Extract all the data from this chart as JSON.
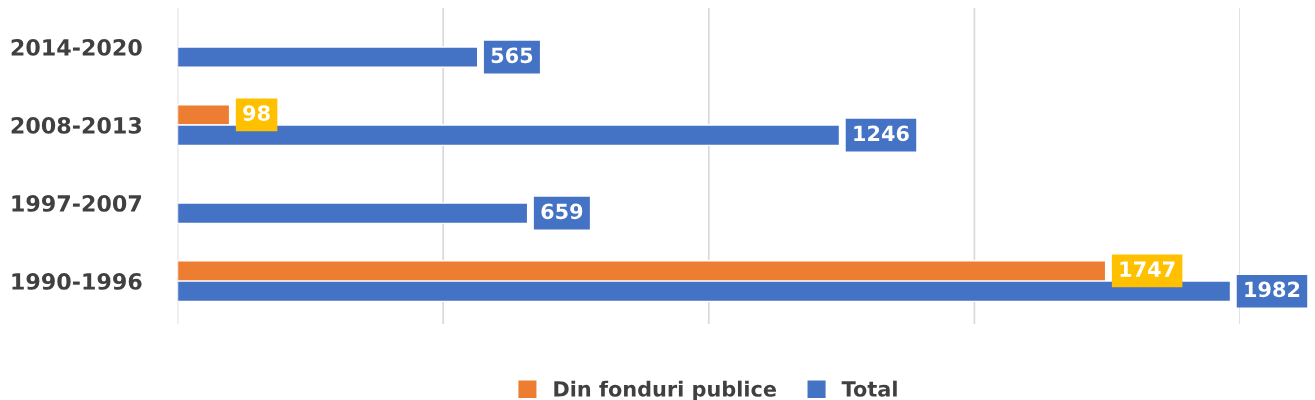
{
  "chart_data": {
    "type": "bar",
    "orientation": "horizontal",
    "categories": [
      "2014-2020",
      "2008-2013",
      "1997-2007",
      "1990-1996"
    ],
    "series": [
      {
        "name": "Din fonduri publice",
        "color": "#ed7d31",
        "values": [
          null,
          98,
          null,
          1747
        ]
      },
      {
        "name": "Total",
        "color": "#4472c4",
        "values": [
          565,
          1246,
          659,
          1982
        ]
      }
    ],
    "xlim": [
      0,
      2000
    ],
    "xticks": [
      {
        "value": 0,
        "label": null
      },
      {
        "value": 500,
        "label": null
      },
      {
        "value": 1000,
        "label": null
      },
      {
        "value": 1500,
        "label": null
      },
      {
        "value": 2000,
        "label": null
      }
    ],
    "tick_labels": "y",
    "grid": "x",
    "data_labels": true,
    "legend": "bottom"
  }
}
